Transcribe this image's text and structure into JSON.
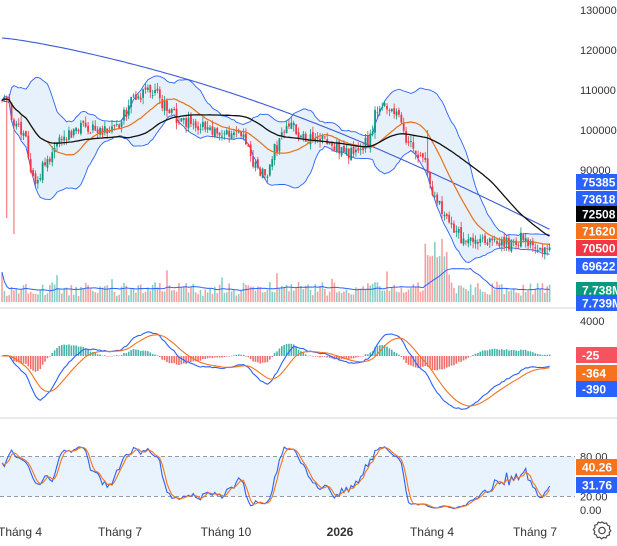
{
  "chart_data": {
    "type": "line",
    "main_pane": {
      "series_type": "candlestick",
      "y_ticks": [
        130000,
        120000,
        110000,
        100000,
        90000
      ],
      "ylim": [
        66000,
        131000
      ],
      "series": [
        {
          "key": "bb_upper",
          "color": "#2962ff"
        },
        {
          "key": "bb_lower",
          "color": "#2962ff"
        },
        {
          "key": "sma20",
          "color": "#e8711a"
        },
        {
          "key": "sma50",
          "color": "#111111"
        },
        {
          "key": "sma200",
          "color": "#3d5bd6"
        }
      ],
      "price_labels": [
        {
          "text": "75385",
          "value": 75385,
          "bg": "#2962ff",
          "fg": "#ffffff"
        },
        {
          "text": "73618",
          "value": 73618,
          "bg": "#2962ff",
          "fg": "#ffffff"
        },
        {
          "text": "72508",
          "value": 72508,
          "bg": "#000000",
          "fg": "#ffffff"
        },
        {
          "text": "71620",
          "value": 71620,
          "bg": "#f5731c",
          "fg": "#ffffff"
        },
        {
          "text": "70500",
          "value": 70500,
          "bg": "#f23645",
          "fg": "#ffffff"
        },
        {
          "text": "69622",
          "value": 69622,
          "bg": "#2962ff",
          "fg": "#ffffff"
        }
      ]
    },
    "volume": {
      "labels": [
        {
          "text": "7.738M",
          "bg": "#089981",
          "fg": "#ffffff"
        },
        {
          "text": "7.739M",
          "bg": "#2962ff",
          "fg": "#ffffff"
        }
      ],
      "colors": {
        "up": "#26a69a",
        "down": "#ef5350"
      }
    },
    "macd_pane": {
      "y_ticks": [
        4000
      ],
      "ylim": [
        -7500,
        5000
      ],
      "labels": [
        {
          "text": "-25",
          "value": -25,
          "bg": "#f7525f",
          "fg": "#ffffff"
        },
        {
          "text": "-364",
          "value": -364,
          "bg": "#f5731c",
          "fg": "#ffffff"
        },
        {
          "text": "-390",
          "value": -390,
          "bg": "#2962ff",
          "fg": "#ffffff"
        }
      ]
    },
    "stoch_pane": {
      "y_ticks": [
        80.0,
        20.0,
        0.0
      ],
      "tick_labels": [
        "80.00",
        "20.00",
        "0.00"
      ],
      "ylim": [
        0,
        100
      ],
      "upper_band": 80,
      "lower_band": 20,
      "labels": [
        {
          "text": "40.26",
          "value": 40.26,
          "bg": "#f5731c",
          "fg": "#ffffff"
        },
        {
          "text": "31.76",
          "value": 31.76,
          "bg": "#2962ff",
          "fg": "#ffffff"
        }
      ]
    },
    "x_ticks": [
      {
        "label": "Tháng 4",
        "bold": false
      },
      {
        "label": "Tháng 7",
        "bold": false
      },
      {
        "label": "Tháng 10",
        "bold": false
      },
      {
        "label": "2026",
        "bold": true
      },
      {
        "label": "Tháng 4",
        "bold": false
      },
      {
        "label": "Tháng 7",
        "bold": false
      }
    ],
    "colors": {
      "up": "#089981",
      "down": "#f23645",
      "band_fill": "#e3f0fb",
      "stoch_fill": "#e8f3fd"
    }
  },
  "ui": {
    "settings_icon": "gear-icon"
  }
}
